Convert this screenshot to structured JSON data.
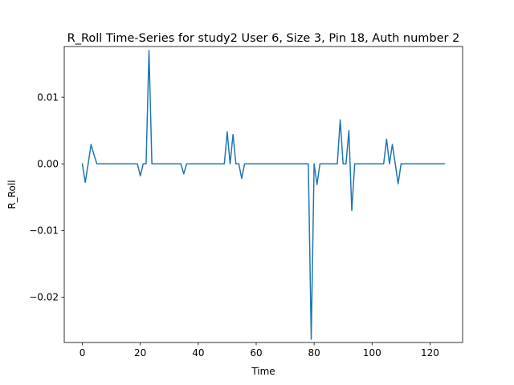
{
  "chart_data": {
    "type": "line",
    "title": "R_Roll Time-Series for study2 User 6, Size 3, Pin 18, Auth number 2",
    "xlabel": "Time",
    "ylabel": "R_Roll",
    "xlim": [
      -6.25,
      131.25
    ],
    "ylim": [
      -0.0268,
      0.0176
    ],
    "xticks": [
      0,
      20,
      40,
      60,
      80,
      100,
      120
    ],
    "yticks": [
      -0.02,
      -0.01,
      0.0,
      0.01
    ],
    "xtick_labels": [
      "0",
      "20",
      "40",
      "60",
      "80",
      "100",
      "120"
    ],
    "ytick_labels": [
      "−0.02",
      "−0.01",
      "0.00",
      "0.01"
    ],
    "grid": false,
    "series": [
      {
        "color": "#1f77b4",
        "x": [
          0,
          1,
          2,
          3,
          4,
          5,
          6,
          7,
          8,
          9,
          10,
          11,
          12,
          13,
          14,
          15,
          16,
          17,
          18,
          19,
          20,
          21,
          22,
          23,
          24,
          25,
          26,
          27,
          28,
          29,
          30,
          31,
          32,
          33,
          34,
          35,
          36,
          37,
          38,
          39,
          40,
          41,
          42,
          43,
          44,
          45,
          46,
          47,
          48,
          49,
          50,
          51,
          52,
          53,
          54,
          55,
          56,
          57,
          58,
          59,
          60,
          61,
          62,
          63,
          64,
          65,
          66,
          67,
          68,
          69,
          70,
          71,
          72,
          73,
          74,
          75,
          76,
          77,
          78,
          79,
          80,
          81,
          82,
          83,
          84,
          85,
          86,
          87,
          88,
          89,
          90,
          91,
          92,
          93,
          94,
          95,
          96,
          97,
          98,
          99,
          100,
          101,
          102,
          103,
          104,
          105,
          106,
          107,
          108,
          109,
          110,
          111,
          112,
          113,
          114,
          115,
          116,
          117,
          118,
          119,
          120,
          121,
          122,
          123,
          124,
          125
        ],
        "y": [
          0,
          -0.0028,
          0,
          0.0029,
          0.0014,
          0,
          0,
          0,
          0,
          0,
          0,
          0,
          0,
          0,
          0,
          0,
          0,
          0,
          0,
          0,
          -0.0018,
          0,
          0,
          0.017,
          0,
          0,
          0,
          0,
          0,
          0,
          0,
          0,
          0,
          0,
          0,
          -0.0015,
          0,
          0,
          0,
          0,
          0,
          0,
          0,
          0,
          0,
          0,
          0,
          0,
          0,
          0,
          0.0048,
          0,
          0.0044,
          0,
          0,
          -0.0022,
          0,
          0,
          0,
          0,
          0,
          0,
          0,
          0,
          0,
          0,
          0,
          0,
          0,
          0,
          0,
          0,
          0,
          0,
          0,
          0,
          0,
          0,
          0,
          -0.0263,
          0,
          -0.0031,
          0,
          0,
          0,
          0,
          0,
          0,
          0,
          0.0066,
          0,
          0,
          0.005,
          -0.007,
          0,
          0,
          0,
          0,
          0,
          0,
          0,
          0,
          0,
          0,
          0,
          0.0037,
          0,
          0.0029,
          0,
          -0.003,
          0,
          0,
          0,
          0,
          0,
          0,
          0,
          0,
          0,
          0,
          0,
          0,
          0,
          0,
          0,
          0
        ]
      }
    ]
  }
}
